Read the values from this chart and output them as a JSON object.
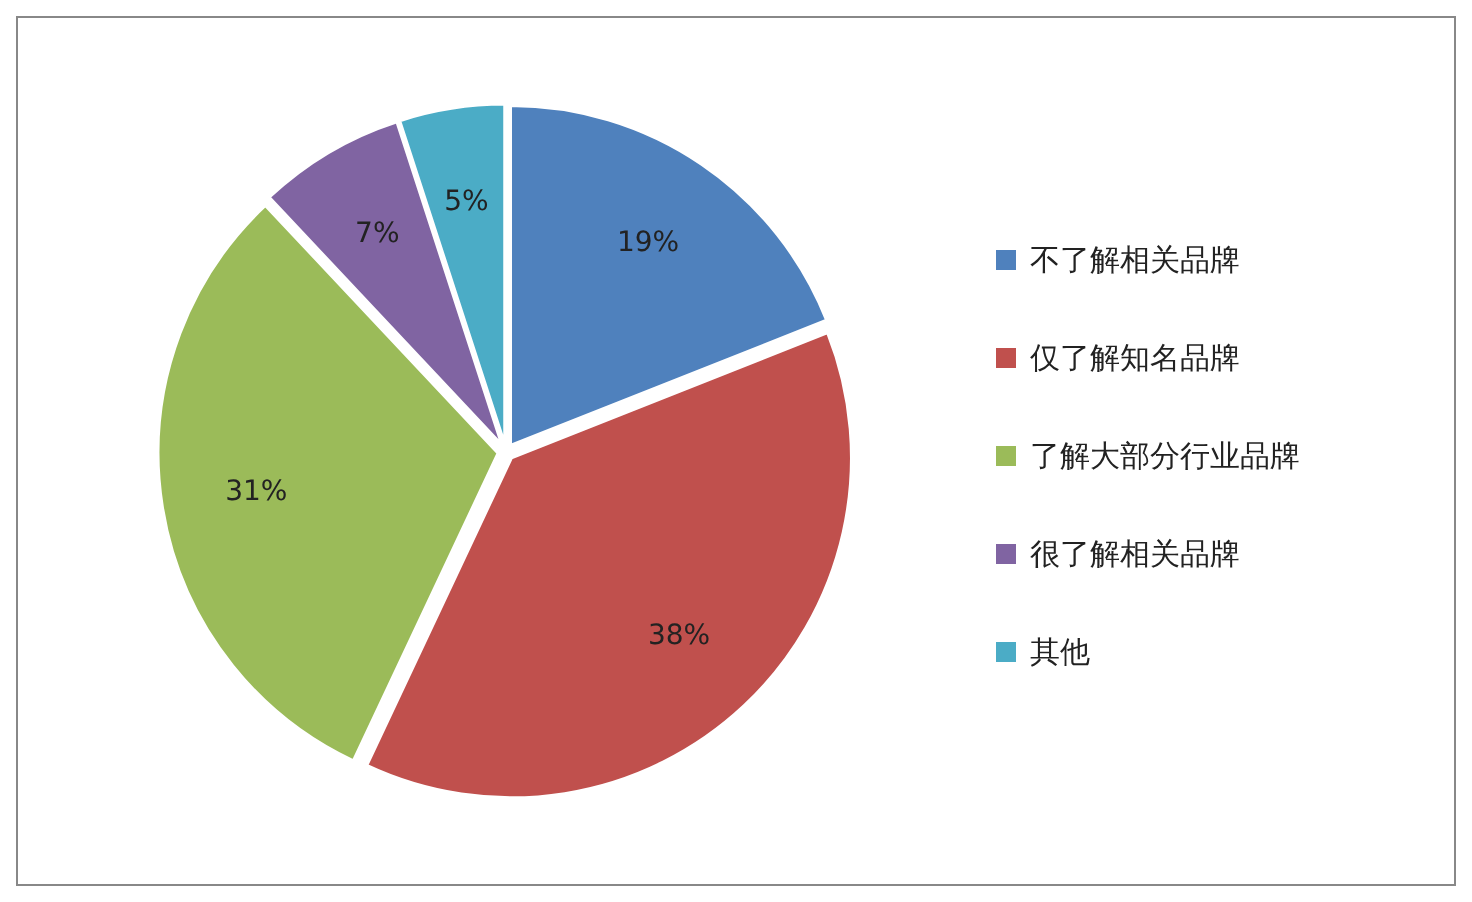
{
  "chart_data": {
    "type": "pie",
    "categories": [
      "不了解相关品牌",
      "仅了解知名品牌",
      "了解大部分行业品牌",
      "很了解相关品牌",
      "其他"
    ],
    "values": [
      19,
      38,
      31,
      7,
      5
    ],
    "colors": [
      "#4f81bd",
      "#c0504d",
      "#9bbb59",
      "#8064a2",
      "#4bacc6"
    ],
    "value_labels": [
      "19%",
      "38%",
      "31%",
      "7%",
      "5%"
    ],
    "legend": "right"
  }
}
